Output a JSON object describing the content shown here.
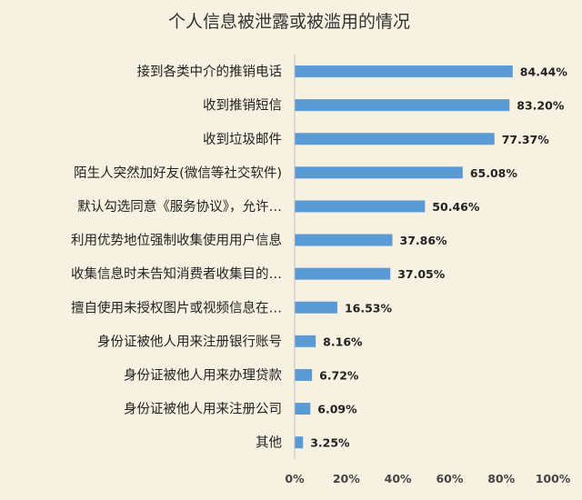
{
  "chart_data": {
    "type": "bar",
    "orientation": "horizontal",
    "title": "个人信息被泄露或被滥用的情况",
    "categories": [
      "接到各类中介的推销电话",
      "收到推销短信",
      "收到垃圾邮件",
      "陌生人突然加好友(微信等社交软件)",
      "默认勾选同意《服务协议》，允许…",
      "利用优势地位强制收集使用用户信息",
      "收集信息时未告知消费者收集目的…",
      "擅自使用未授权图片或视频信息在…",
      "身份证被他人用来注册银行账号",
      "身份证被他人用来办理贷款",
      "身份证被他人用来注册公司",
      "其他"
    ],
    "values": [
      84.44,
      83.2,
      77.37,
      65.08,
      50.46,
      37.86,
      37.05,
      16.53,
      8.16,
      6.72,
      6.09,
      3.25
    ],
    "value_labels": [
      "84.44%",
      "83.20%",
      "77.37%",
      "65.08%",
      "50.46%",
      "37.86%",
      "37.05%",
      "16.53%",
      "8.16%",
      "6.72%",
      "6.09%",
      "3.25%"
    ],
    "xlim": [
      0,
      100
    ],
    "xticks": [
      0,
      20,
      40,
      60,
      80,
      100
    ],
    "xtick_labels": [
      "0%",
      "20%",
      "40%",
      "60%",
      "80%",
      "100%"
    ],
    "grid": false,
    "legend": "none",
    "bar_color": "#5b9bd5"
  }
}
